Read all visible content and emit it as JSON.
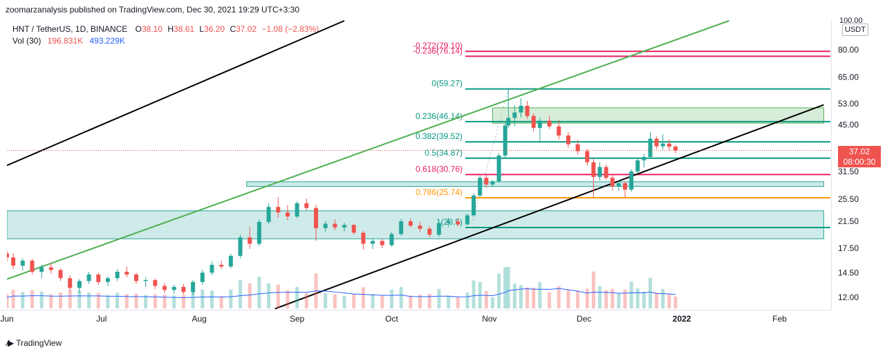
{
  "header": {
    "publisher_line": "zoomarzanalysis published on TradingView.com, Dec 30, 2021 19:29 UTC+3:30"
  },
  "legend": {
    "symbol": "HNT / TetherUS, 1D, BINANCE",
    "o_label": "O",
    "o": "38.10",
    "h_label": "H",
    "h": "38.61",
    "l_label": "L",
    "l": "36.20",
    "c_label": "C",
    "c": "37.02",
    "change": "−1.08 (−2.83%)",
    "vol_label": "Vol (30)",
    "vol": "196.831K",
    "vol_ma": "493.229K"
  },
  "axis": {
    "currency": "USDT",
    "top_tick": "100.00",
    "price_ticks": [
      "80.00",
      "65.00",
      "53.00",
      "45.00",
      "31.50",
      "25.50",
      "21.50",
      "17.50",
      "14.50",
      "12.00"
    ],
    "time_labels": [
      "Jun",
      "Jul",
      "Aug",
      "Sep",
      "Oct",
      "Nov",
      "Dec",
      "2022",
      "Feb"
    ],
    "last_price": "37.02",
    "countdown": "08:00:30"
  },
  "footer": {
    "brand": "TradingView"
  },
  "chart_data": {
    "type": "candlestick",
    "symbol": "HNT/USDT",
    "interval": "1D",
    "x_range": [
      "2021-06-01",
      "2022-02-28"
    ],
    "y_scale": "log",
    "y_range": [
      11,
      100
    ],
    "last_close": 37.02,
    "fib_levels": [
      {
        "label": "-0.272(79.10)",
        "ratio": -0.272,
        "price": 79.1,
        "color": "#e91e63"
      },
      {
        "label": "-0.236(76.14)",
        "ratio": -0.236,
        "price": 76.14,
        "color": "#e91e63"
      },
      {
        "label": "0(59.27)",
        "ratio": 0,
        "price": 59.27,
        "color": "#089981"
      },
      {
        "label": "0.236(46.14)",
        "ratio": 0.236,
        "price": 46.14,
        "color": "#089981"
      },
      {
        "label": "0.382(39.52)",
        "ratio": 0.382,
        "price": 39.52,
        "color": "#089981"
      },
      {
        "label": "0.5(34.87)",
        "ratio": 0.5,
        "price": 34.87,
        "color": "#089981"
      },
      {
        "label": "0.618(30.76)",
        "ratio": 0.618,
        "price": 30.76,
        "color": "#e91e63"
      },
      {
        "label": "0.786(25.74)",
        "ratio": 0.786,
        "price": 25.74,
        "color": "#ff9800"
      },
      {
        "label": "1(20.5)",
        "ratio": 1,
        "price": 20.5,
        "color": "#089981"
      }
    ],
    "zones": [
      {
        "from": 18.8,
        "to": 23.3,
        "date_from": "2021-06-01",
        "date_to": "2022-02-15"
      },
      {
        "from": 28.1,
        "to": 29.1,
        "date_from": "2021-08-16",
        "date_to": "2022-02-15"
      },
      {
        "from": 45.6,
        "to": 51.3,
        "date_from": "2021-11-02",
        "date_to": "2022-02-15"
      }
    ],
    "trendlines": [
      {
        "color": "#000000",
        "from": [
          "2021-06-01",
          33.0
        ],
        "to": [
          "2021-09-16",
          100.0
        ]
      },
      {
        "color": "#4caf50",
        "from": [
          "2021-06-01",
          13.8
        ],
        "to": [
          "2022-01-16",
          100.0
        ]
      },
      {
        "color": "#000000",
        "from": [
          "2021-08-25",
          11.0
        ],
        "to": [
          "2022-02-15",
          52.5
        ]
      }
    ],
    "candles": [
      [
        "2021-06-01",
        16.8,
        17.2,
        15.8,
        16.3
      ],
      [
        "2021-06-03",
        16.3,
        16.8,
        14.9,
        15.3
      ],
      [
        "2021-06-06",
        15.3,
        16.2,
        14.7,
        15.9
      ],
      [
        "2021-06-09",
        15.9,
        16.1,
        14.3,
        14.6
      ],
      [
        "2021-06-12",
        14.6,
        15.4,
        13.9,
        15.1
      ],
      [
        "2021-06-15",
        15.1,
        15.6,
        14.4,
        14.8
      ],
      [
        "2021-06-18",
        14.8,
        15.0,
        13.6,
        13.9
      ],
      [
        "2021-06-21",
        13.9,
        14.2,
        12.6,
        12.9
      ],
      [
        "2021-06-24",
        12.9,
        13.8,
        12.4,
        13.6
      ],
      [
        "2021-06-27",
        13.6,
        14.6,
        13.3,
        14.3
      ],
      [
        "2021-06-30",
        14.3,
        14.5,
        13.2,
        13.5
      ],
      [
        "2021-07-03",
        13.5,
        14.1,
        13.1,
        13.9
      ],
      [
        "2021-07-06",
        13.9,
        14.9,
        13.6,
        14.6
      ],
      [
        "2021-07-09",
        14.6,
        15.2,
        14.0,
        14.3
      ],
      [
        "2021-07-12",
        14.3,
        14.5,
        13.3,
        13.6
      ],
      [
        "2021-07-15",
        13.6,
        14.0,
        13.0,
        13.7
      ],
      [
        "2021-07-18",
        13.7,
        13.9,
        12.8,
        13.1
      ],
      [
        "2021-07-21",
        13.1,
        13.4,
        12.4,
        12.7
      ],
      [
        "2021-07-24",
        12.7,
        13.2,
        12.3,
        13.0
      ],
      [
        "2021-07-27",
        13.0,
        13.3,
        12.3,
        12.5
      ],
      [
        "2021-07-30",
        12.5,
        13.7,
        12.2,
        13.5
      ],
      [
        "2021-08-02",
        13.5,
        14.8,
        13.2,
        14.5
      ],
      [
        "2021-08-05",
        14.5,
        15.8,
        14.2,
        15.4
      ],
      [
        "2021-08-08",
        15.4,
        15.9,
        14.9,
        15.2
      ],
      [
        "2021-08-11",
        15.2,
        16.8,
        15.0,
        16.5
      ],
      [
        "2021-08-14",
        16.5,
        19.4,
        16.2,
        19.0
      ],
      [
        "2021-08-17",
        19.0,
        20.6,
        17.4,
        18.1
      ],
      [
        "2021-08-20",
        18.1,
        21.8,
        17.8,
        21.4
      ],
      [
        "2021-08-23",
        21.4,
        24.6,
        21.0,
        24.0
      ],
      [
        "2021-08-26",
        24.0,
        25.9,
        22.1,
        23.0
      ],
      [
        "2021-08-29",
        23.0,
        24.3,
        21.7,
        22.3
      ],
      [
        "2021-09-01",
        22.3,
        25.1,
        22.0,
        24.7
      ],
      [
        "2021-09-04",
        24.7,
        25.6,
        23.4,
        23.8
      ],
      [
        "2021-09-07",
        23.8,
        24.4,
        18.5,
        20.4
      ],
      [
        "2021-09-10",
        20.4,
        21.6,
        19.8,
        21.1
      ],
      [
        "2021-09-13",
        21.1,
        21.8,
        20.1,
        20.5
      ],
      [
        "2021-09-16",
        20.5,
        21.3,
        19.9,
        20.9
      ],
      [
        "2021-09-19",
        20.9,
        21.1,
        19.4,
        19.7
      ],
      [
        "2021-09-22",
        19.7,
        20.0,
        17.3,
        18.1
      ],
      [
        "2021-09-25",
        18.1,
        18.9,
        17.4,
        18.5
      ],
      [
        "2021-09-28",
        18.5,
        18.8,
        17.5,
        17.9
      ],
      [
        "2021-10-01",
        17.9,
        19.8,
        17.7,
        19.5
      ],
      [
        "2021-10-04",
        19.5,
        21.9,
        19.2,
        21.5
      ],
      [
        "2021-10-07",
        21.5,
        22.0,
        20.5,
        20.8
      ],
      [
        "2021-10-10",
        20.8,
        21.4,
        19.8,
        20.3
      ],
      [
        "2021-10-13",
        20.3,
        20.7,
        19.0,
        19.4
      ],
      [
        "2021-10-16",
        19.4,
        21.5,
        19.1,
        21.2
      ],
      [
        "2021-10-19",
        21.2,
        22.1,
        20.6,
        21.5
      ],
      [
        "2021-10-22",
        21.5,
        22.0,
        20.7,
        21.0
      ],
      [
        "2021-10-25",
        21.0,
        22.8,
        20.8,
        22.5
      ],
      [
        "2021-10-27",
        22.5,
        26.6,
        22.3,
        26.2
      ],
      [
        "2021-10-29",
        26.2,
        30.6,
        25.9,
        30.0
      ],
      [
        "2021-10-31",
        30.0,
        31.0,
        27.8,
        28.5
      ],
      [
        "2021-11-02",
        28.5,
        29.5,
        27.9,
        29.2
      ],
      [
        "2021-11-04",
        29.2,
        36.2,
        29.0,
        35.6
      ],
      [
        "2021-11-06",
        35.6,
        45.6,
        35.0,
        44.8
      ],
      [
        "2021-11-07",
        44.8,
        59.3,
        44.0,
        47.5
      ],
      [
        "2021-11-09",
        47.5,
        52.4,
        44.6,
        49.5
      ],
      [
        "2021-11-11",
        49.5,
        55.2,
        47.6,
        52.1
      ],
      [
        "2021-11-13",
        52.1,
        54.1,
        47.1,
        48.2
      ],
      [
        "2021-11-15",
        48.2,
        49.2,
        42.8,
        44.0
      ],
      [
        "2021-11-17",
        44.0,
        47.6,
        39.8,
        46.5
      ],
      [
        "2021-11-20",
        46.5,
        48.2,
        43.7,
        44.5
      ],
      [
        "2021-11-23",
        44.5,
        46.8,
        40.3,
        41.5
      ],
      [
        "2021-11-26",
        41.5,
        42.6,
        37.8,
        38.8
      ],
      [
        "2021-11-29",
        38.8,
        40.1,
        35.8,
        36.8
      ],
      [
        "2021-12-02",
        36.8,
        37.5,
        32.9,
        33.8
      ],
      [
        "2021-12-04",
        33.8,
        34.7,
        25.8,
        30.2
      ],
      [
        "2021-12-06",
        30.2,
        33.8,
        29.4,
        32.6
      ],
      [
        "2021-12-08",
        32.6,
        33.2,
        29.5,
        30.0
      ],
      [
        "2021-12-10",
        30.0,
        30.9,
        27.2,
        28.1
      ],
      [
        "2021-12-12",
        28.1,
        29.5,
        27.1,
        28.8
      ],
      [
        "2021-12-14",
        28.8,
        29.2,
        25.8,
        27.4
      ],
      [
        "2021-12-16",
        27.4,
        32.0,
        27.0,
        31.5
      ],
      [
        "2021-12-18",
        31.5,
        35.0,
        31.0,
        34.3
      ],
      [
        "2021-12-20",
        34.3,
        36.0,
        32.5,
        35.2
      ],
      [
        "2021-12-22",
        35.2,
        42.5,
        35.0,
        40.5
      ],
      [
        "2021-12-24",
        40.5,
        41.2,
        37.4,
        38.2
      ],
      [
        "2021-12-26",
        38.2,
        41.9,
        37.2,
        39.0
      ],
      [
        "2021-12-28",
        39.0,
        40.2,
        36.9,
        38.1
      ],
      [
        "2021-12-30",
        38.1,
        38.6,
        36.2,
        37.0
      ]
    ]
  }
}
